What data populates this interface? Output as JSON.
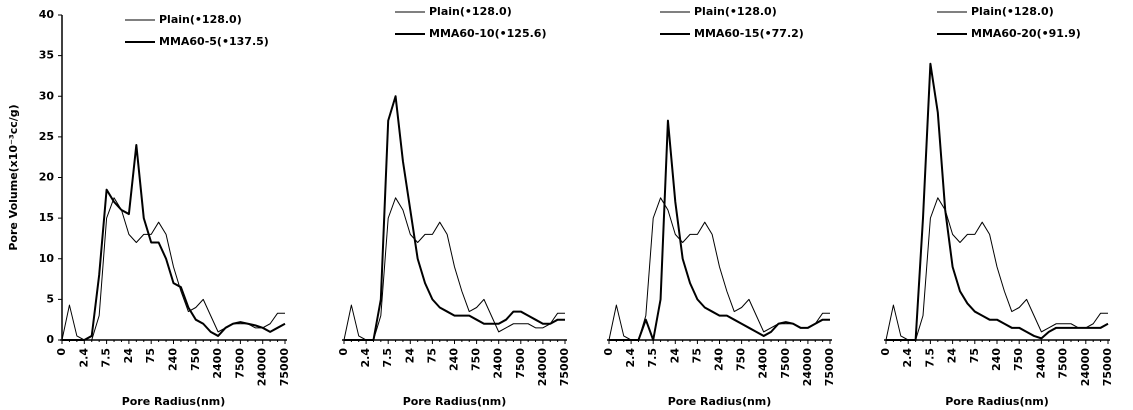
{
  "chart_data": [
    {
      "type": "line",
      "y_label": "Pore Volume(x10⁻³cc/g)",
      "x_label": "Pore Radius(nm)",
      "categories": [
        "0",
        null,
        null,
        "2.4",
        null,
        null,
        "7.5",
        null,
        null,
        "24",
        null,
        null,
        "75",
        null,
        null,
        "240",
        null,
        null,
        "750",
        null,
        null,
        "2400",
        null,
        null,
        "7500",
        null,
        null,
        "24000",
        null,
        null,
        "75000"
      ],
      "ylim": [
        0,
        40
      ],
      "yticks": [
        0,
        5,
        10,
        15,
        20,
        25,
        30,
        35,
        40
      ],
      "series": [
        {
          "name": "Plain(•128.0)",
          "color": "#000000",
          "line_width": 1,
          "values": [
            0,
            4.3,
            0.5,
            0,
            0,
            3,
            15,
            17.5,
            16,
            13,
            12,
            13,
            13,
            14.5,
            13,
            9,
            6,
            3.5,
            4,
            5,
            3,
            1,
            1.5,
            2,
            2,
            2,
            1.5,
            1.5,
            2,
            3.3,
            3.3
          ]
        },
        {
          "name": "MMA60-5(•137.5)",
          "color": "#000000",
          "line_width": 2,
          "values": [
            0,
            0,
            0,
            0,
            0.5,
            8,
            18.5,
            17,
            16,
            15.5,
            24,
            15,
            12,
            12,
            10,
            7,
            6.5,
            4,
            2.5,
            2,
            1,
            0.5,
            1.5,
            2,
            2.2,
            2,
            1.8,
            1.5,
            1,
            1.5,
            2
          ]
        }
      ]
    },
    {
      "type": "line",
      "x_label": "Pore Radius(nm)",
      "categories": [
        "0",
        null,
        null,
        "2.4",
        null,
        null,
        "7.5",
        null,
        null,
        "24",
        null,
        null,
        "75",
        null,
        null,
        "240",
        null,
        null,
        "750",
        null,
        null,
        "2400",
        null,
        null,
        "7500",
        null,
        null,
        "24000",
        null,
        null,
        "75000"
      ],
      "ylim": [
        0,
        40
      ],
      "series": [
        {
          "name": "Plain(•128.0)",
          "color": "#000000",
          "line_width": 1,
          "values": [
            0,
            4.3,
            0.5,
            0,
            0,
            3,
            15,
            17.5,
            16,
            13,
            12,
            13,
            13,
            14.5,
            13,
            9,
            6,
            3.5,
            4,
            5,
            3,
            1,
            1.5,
            2,
            2,
            2,
            1.5,
            1.5,
            2,
            3.3,
            3.3
          ]
        },
        {
          "name": "MMA60-10(•125.6)",
          "color": "#000000",
          "line_width": 2,
          "values": [
            0,
            0,
            0,
            0,
            0,
            5,
            27,
            30,
            22,
            16,
            10,
            7,
            5,
            4,
            3.5,
            3,
            3,
            3,
            2.5,
            2,
            2,
            2,
            2.5,
            3.5,
            3.5,
            3,
            2.5,
            2,
            2,
            2.5,
            2.5
          ]
        }
      ]
    },
    {
      "type": "line",
      "x_label": "Pore Radius(nm)",
      "categories": [
        "0",
        null,
        null,
        "2.4",
        null,
        null,
        "7.5",
        null,
        null,
        "24",
        null,
        null,
        "75",
        null,
        null,
        "240",
        null,
        null,
        "750",
        null,
        null,
        "2400",
        null,
        null,
        "7500",
        null,
        null,
        "24000",
        null,
        null,
        "75000"
      ],
      "ylim": [
        0,
        40
      ],
      "series": [
        {
          "name": "Plain(•128.0)",
          "color": "#000000",
          "line_width": 1,
          "values": [
            0,
            4.3,
            0.5,
            0,
            0,
            3,
            15,
            17.5,
            16,
            13,
            12,
            13,
            13,
            14.5,
            13,
            9,
            6,
            3.5,
            4,
            5,
            3,
            1,
            1.5,
            2,
            2,
            2,
            1.5,
            1.5,
            2,
            3.3,
            3.3
          ]
        },
        {
          "name": "MMA60-15(•77.2)",
          "color": "#000000",
          "line_width": 2,
          "values": [
            0,
            0,
            0,
            0,
            0,
            2.5,
            0,
            5,
            27,
            17,
            10,
            7,
            5,
            4,
            3.5,
            3,
            3,
            2.5,
            2,
            1.5,
            1,
            0.5,
            1,
            2,
            2.2,
            2,
            1.5,
            1.5,
            2,
            2.5,
            2.5
          ]
        }
      ]
    },
    {
      "type": "line",
      "x_label": "Pore Radius(nm)",
      "categories": [
        "0",
        null,
        null,
        "2.4",
        null,
        null,
        "7.5",
        null,
        null,
        "24",
        null,
        null,
        "75",
        null,
        null,
        "240",
        null,
        null,
        "750",
        null,
        null,
        "2400",
        null,
        null,
        "7500",
        null,
        null,
        "24000",
        null,
        null,
        "75000"
      ],
      "ylim": [
        0,
        40
      ],
      "series": [
        {
          "name": "Plain(•128.0)",
          "color": "#000000",
          "line_width": 1,
          "values": [
            0,
            4.3,
            0.5,
            0,
            0,
            3,
            15,
            17.5,
            16,
            13,
            12,
            13,
            13,
            14.5,
            13,
            9,
            6,
            3.5,
            4,
            5,
            3,
            1,
            1.5,
            2,
            2,
            2,
            1.5,
            1.5,
            2,
            3.3,
            3.3
          ]
        },
        {
          "name": "MMA60-20(•91.9)",
          "color": "#000000",
          "line_width": 2,
          "values": [
            0,
            0,
            0,
            0,
            0,
            15,
            34,
            28,
            16,
            9,
            6,
            4.5,
            3.5,
            3,
            2.5,
            2.5,
            2,
            1.5,
            1.5,
            1,
            0.5,
            0.2,
            1,
            1.5,
            1.5,
            1.5,
            1.5,
            1.5,
            1.5,
            1.5,
            2
          ]
        }
      ]
    }
  ]
}
